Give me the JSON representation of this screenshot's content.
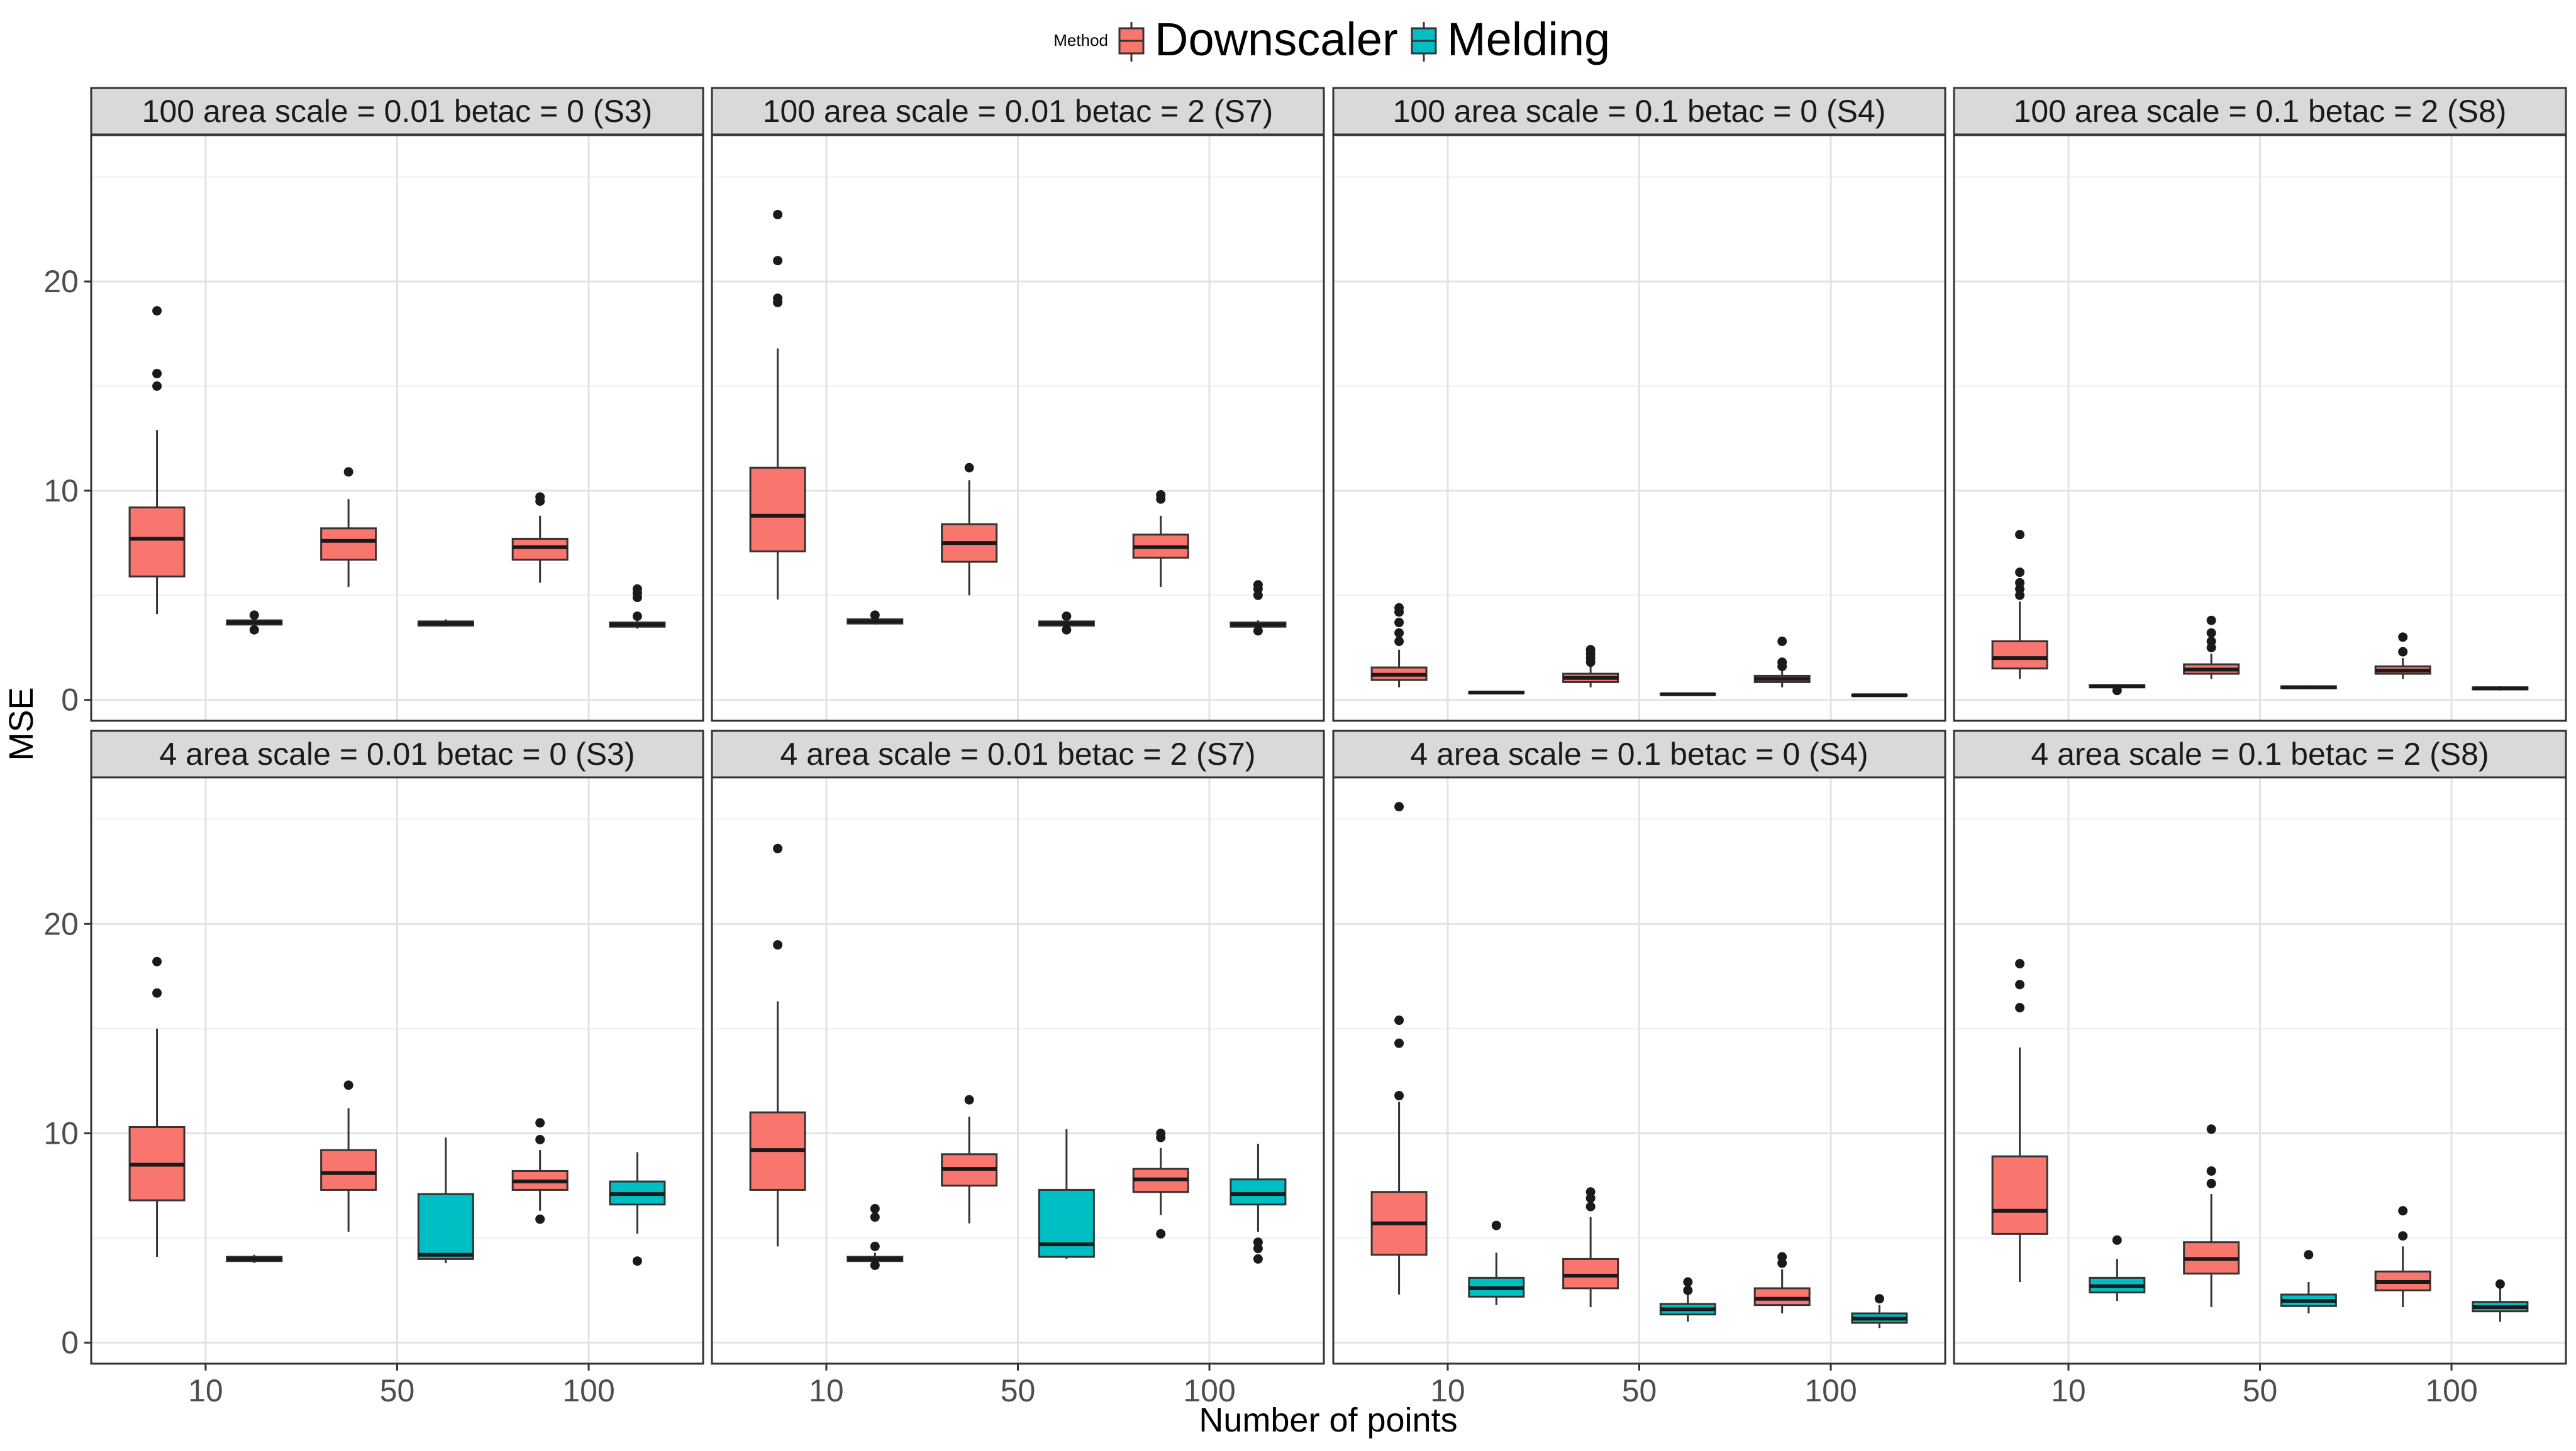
{
  "legend": {
    "title": "Method",
    "items": [
      {
        "label": "Downscaler",
        "color": "#F8766D"
      },
      {
        "label": "Melding",
        "color": "#00BFC4"
      }
    ]
  },
  "chart_data": {
    "type": "boxplot",
    "xlabel": "Number of points",
    "ylabel": "MSE",
    "categories": [
      "10",
      "50",
      "100"
    ],
    "ylim": [
      -1,
      27
    ],
    "yticks": [
      0,
      10,
      20
    ],
    "grid": true,
    "legend_position": "top",
    "series": [
      {
        "name": "Downscaler",
        "color": "#F8766D"
      },
      {
        "name": "Melding",
        "color": "#00BFC4"
      }
    ],
    "panels": [
      {
        "title": "100 area scale = 0.01 betac = 0 (S3)",
        "boxes": [
          {
            "category": "10",
            "series": "Downscaler",
            "lower_whisker": 4.1,
            "q1": 5.9,
            "median": 7.7,
            "q3": 9.2,
            "upper_whisker": 12.9,
            "outliers": [
              15.0,
              15.6,
              18.6
            ]
          },
          {
            "category": "10",
            "series": "Melding",
            "lower_whisker": 3.4,
            "q1": 3.6,
            "median": 3.7,
            "q3": 3.8,
            "upper_whisker": 4.0,
            "outliers": [
              3.35,
              4.05
            ]
          },
          {
            "category": "50",
            "series": "Downscaler",
            "lower_whisker": 5.4,
            "q1": 6.7,
            "median": 7.6,
            "q3": 8.2,
            "upper_whisker": 9.6,
            "outliers": [
              10.9
            ]
          },
          {
            "category": "50",
            "series": "Melding",
            "lower_whisker": 3.5,
            "q1": 3.55,
            "median": 3.65,
            "q3": 3.75,
            "upper_whisker": 3.85,
            "outliers": []
          },
          {
            "category": "100",
            "series": "Downscaler",
            "lower_whisker": 5.6,
            "q1": 6.7,
            "median": 7.3,
            "q3": 7.7,
            "upper_whisker": 8.8,
            "outliers": [
              9.5,
              9.7
            ]
          },
          {
            "category": "100",
            "series": "Melding",
            "lower_whisker": 3.4,
            "q1": 3.5,
            "median": 3.6,
            "q3": 3.7,
            "upper_whisker": 3.8,
            "outliers": [
              4.0,
              4.9,
              5.1,
              5.3
            ]
          }
        ]
      },
      {
        "title": "100 area scale = 0.01 betac = 2 (S7)",
        "boxes": [
          {
            "category": "10",
            "series": "Downscaler",
            "lower_whisker": 4.8,
            "q1": 7.1,
            "median": 8.8,
            "q3": 11.1,
            "upper_whisker": 16.8,
            "outliers": [
              19.0,
              19.2,
              21.0,
              23.2
            ]
          },
          {
            "category": "10",
            "series": "Melding",
            "lower_whisker": 3.6,
            "q1": 3.65,
            "median": 3.75,
            "q3": 3.85,
            "upper_whisker": 3.95,
            "outliers": [
              4.05
            ]
          },
          {
            "category": "50",
            "series": "Downscaler",
            "lower_whisker": 5.0,
            "q1": 6.6,
            "median": 7.5,
            "q3": 8.4,
            "upper_whisker": 10.5,
            "outliers": [
              11.1
            ]
          },
          {
            "category": "50",
            "series": "Melding",
            "lower_whisker": 3.5,
            "q1": 3.55,
            "median": 3.65,
            "q3": 3.75,
            "upper_whisker": 3.85,
            "outliers": [
              3.35,
              4.0
            ]
          },
          {
            "category": "100",
            "series": "Downscaler",
            "lower_whisker": 5.4,
            "q1": 6.8,
            "median": 7.3,
            "q3": 7.9,
            "upper_whisker": 8.8,
            "outliers": [
              9.6,
              9.8
            ]
          },
          {
            "category": "100",
            "series": "Melding",
            "lower_whisker": 3.4,
            "q1": 3.5,
            "median": 3.6,
            "q3": 3.7,
            "upper_whisker": 3.8,
            "outliers": [
              3.3,
              5.0,
              5.3,
              5.5
            ]
          }
        ]
      },
      {
        "title": "100 area scale = 0.1 betac = 0 (S4)",
        "boxes": [
          {
            "category": "10",
            "series": "Downscaler",
            "lower_whisker": 0.6,
            "q1": 0.95,
            "median": 1.2,
            "q3": 1.55,
            "upper_whisker": 2.4,
            "outliers": [
              2.8,
              3.2,
              3.7,
              4.2,
              4.4
            ]
          },
          {
            "category": "10",
            "series": "Melding",
            "lower_whisker": 0.3,
            "q1": 0.32,
            "median": 0.35,
            "q3": 0.38,
            "upper_whisker": 0.4,
            "outliers": []
          },
          {
            "category": "50",
            "series": "Downscaler",
            "lower_whisker": 0.6,
            "q1": 0.85,
            "median": 1.05,
            "q3": 1.25,
            "upper_whisker": 1.6,
            "outliers": [
              1.8,
              2.0,
              2.2,
              2.4
            ]
          },
          {
            "category": "50",
            "series": "Melding",
            "lower_whisker": 0.22,
            "q1": 0.25,
            "median": 0.27,
            "q3": 0.29,
            "upper_whisker": 0.31,
            "outliers": []
          },
          {
            "category": "100",
            "series": "Downscaler",
            "lower_whisker": 0.6,
            "q1": 0.85,
            "median": 1.0,
            "q3": 1.15,
            "upper_whisker": 1.4,
            "outliers": [
              1.6,
              1.8,
              2.8
            ]
          },
          {
            "category": "100",
            "series": "Melding",
            "lower_whisker": 0.18,
            "q1": 0.2,
            "median": 0.22,
            "q3": 0.24,
            "upper_whisker": 0.26,
            "outliers": []
          }
        ]
      },
      {
        "title": "100 area scale = 0.1 betac = 2 (S8)",
        "boxes": [
          {
            "category": "10",
            "series": "Downscaler",
            "lower_whisker": 1.0,
            "q1": 1.5,
            "median": 2.0,
            "q3": 2.8,
            "upper_whisker": 4.7,
            "outliers": [
              5.0,
              5.3,
              5.6,
              6.1,
              7.9
            ]
          },
          {
            "category": "10",
            "series": "Melding",
            "lower_whisker": 0.5,
            "q1": 0.6,
            "median": 0.65,
            "q3": 0.7,
            "upper_whisker": 0.75,
            "outliers": [
              0.45
            ]
          },
          {
            "category": "50",
            "series": "Downscaler",
            "lower_whisker": 1.0,
            "q1": 1.25,
            "median": 1.45,
            "q3": 1.7,
            "upper_whisker": 2.2,
            "outliers": [
              2.5,
              2.8,
              3.2,
              3.8
            ]
          },
          {
            "category": "50",
            "series": "Melding",
            "lower_whisker": 0.5,
            "q1": 0.55,
            "median": 0.6,
            "q3": 0.65,
            "upper_whisker": 0.7,
            "outliers": []
          },
          {
            "category": "100",
            "series": "Downscaler",
            "lower_whisker": 1.0,
            "q1": 1.25,
            "median": 1.4,
            "q3": 1.6,
            "upper_whisker": 2.0,
            "outliers": [
              2.3,
              3.0
            ]
          },
          {
            "category": "100",
            "series": "Melding",
            "lower_whisker": 0.45,
            "q1": 0.5,
            "median": 0.55,
            "q3": 0.6,
            "upper_whisker": 0.65,
            "outliers": []
          }
        ]
      },
      {
        "title": "4 area scale = 0.01 betac = 0 (S3)",
        "boxes": [
          {
            "category": "10",
            "series": "Downscaler",
            "lower_whisker": 4.1,
            "q1": 6.8,
            "median": 8.5,
            "q3": 10.3,
            "upper_whisker": 15.0,
            "outliers": [
              16.7,
              18.2
            ]
          },
          {
            "category": "10",
            "series": "Melding",
            "lower_whisker": 3.8,
            "q1": 3.9,
            "median": 4.0,
            "q3": 4.1,
            "upper_whisker": 4.2,
            "outliers": []
          },
          {
            "category": "50",
            "series": "Downscaler",
            "lower_whisker": 5.3,
            "q1": 7.3,
            "median": 8.1,
            "q3": 9.2,
            "upper_whisker": 11.2,
            "outliers": [
              12.3
            ]
          },
          {
            "category": "50",
            "series": "Melding",
            "lower_whisker": 3.8,
            "q1": 4.0,
            "median": 4.2,
            "q3": 7.1,
            "upper_whisker": 9.8,
            "outliers": []
          },
          {
            "category": "100",
            "series": "Downscaler",
            "lower_whisker": 6.3,
            "q1": 7.3,
            "median": 7.7,
            "q3": 8.2,
            "upper_whisker": 9.2,
            "outliers": [
              5.9,
              9.7,
              10.5
            ]
          },
          {
            "category": "100",
            "series": "Melding",
            "lower_whisker": 5.2,
            "q1": 6.6,
            "median": 7.1,
            "q3": 7.7,
            "upper_whisker": 9.1,
            "outliers": [
              3.9
            ]
          }
        ]
      },
      {
        "title": "4 area scale = 0.01 betac = 2 (S7)",
        "boxes": [
          {
            "category": "10",
            "series": "Downscaler",
            "lower_whisker": 4.6,
            "q1": 7.3,
            "median": 9.2,
            "q3": 11.0,
            "upper_whisker": 16.3,
            "outliers": [
              19.0,
              23.6
            ]
          },
          {
            "category": "10",
            "series": "Melding",
            "lower_whisker": 3.8,
            "q1": 3.9,
            "median": 4.0,
            "q3": 4.1,
            "upper_whisker": 4.3,
            "outliers": [
              3.7,
              4.6,
              6.0,
              6.4
            ]
          },
          {
            "category": "50",
            "series": "Downscaler",
            "lower_whisker": 5.7,
            "q1": 7.5,
            "median": 8.3,
            "q3": 9.0,
            "upper_whisker": 10.8,
            "outliers": [
              11.6
            ]
          },
          {
            "category": "50",
            "series": "Melding",
            "lower_whisker": 4.0,
            "q1": 4.1,
            "median": 4.7,
            "q3": 7.3,
            "upper_whisker": 10.2,
            "outliers": []
          },
          {
            "category": "100",
            "series": "Downscaler",
            "lower_whisker": 6.1,
            "q1": 7.2,
            "median": 7.8,
            "q3": 8.3,
            "upper_whisker": 9.3,
            "outliers": [
              5.2,
              9.8,
              10.0
            ]
          },
          {
            "category": "100",
            "series": "Melding",
            "lower_whisker": 5.3,
            "q1": 6.6,
            "median": 7.1,
            "q3": 7.8,
            "upper_whisker": 9.5,
            "outliers": [
              4.0,
              4.5,
              4.8
            ]
          }
        ]
      },
      {
        "title": "4 area scale = 0.1 betac = 0 (S4)",
        "boxes": [
          {
            "category": "10",
            "series": "Downscaler",
            "lower_whisker": 2.3,
            "q1": 4.2,
            "median": 5.7,
            "q3": 7.2,
            "upper_whisker": 11.5,
            "outliers": [
              11.8,
              14.3,
              15.4,
              25.6
            ]
          },
          {
            "category": "10",
            "series": "Melding",
            "lower_whisker": 1.8,
            "q1": 2.2,
            "median": 2.6,
            "q3": 3.1,
            "upper_whisker": 4.3,
            "outliers": [
              5.6
            ]
          },
          {
            "category": "50",
            "series": "Downscaler",
            "lower_whisker": 1.7,
            "q1": 2.6,
            "median": 3.2,
            "q3": 4.0,
            "upper_whisker": 6.0,
            "outliers": [
              6.5,
              6.9,
              7.2
            ]
          },
          {
            "category": "50",
            "series": "Melding",
            "lower_whisker": 1.0,
            "q1": 1.35,
            "median": 1.6,
            "q3": 1.85,
            "upper_whisker": 2.3,
            "outliers": [
              2.5,
              2.9
            ]
          },
          {
            "category": "100",
            "series": "Downscaler",
            "lower_whisker": 1.4,
            "q1": 1.8,
            "median": 2.1,
            "q3": 2.6,
            "upper_whisker": 3.5,
            "outliers": [
              3.8,
              4.1
            ]
          },
          {
            "category": "100",
            "series": "Melding",
            "lower_whisker": 0.7,
            "q1": 0.95,
            "median": 1.15,
            "q3": 1.4,
            "upper_whisker": 1.8,
            "outliers": [
              2.1
            ]
          }
        ]
      },
      {
        "title": "4 area scale = 0.1 betac = 2 (S8)",
        "boxes": [
          {
            "category": "10",
            "series": "Downscaler",
            "lower_whisker": 2.9,
            "q1": 5.2,
            "median": 6.3,
            "q3": 8.9,
            "upper_whisker": 14.1,
            "outliers": [
              16.0,
              17.1,
              18.1
            ]
          },
          {
            "category": "10",
            "series": "Melding",
            "lower_whisker": 2.0,
            "q1": 2.4,
            "median": 2.7,
            "q3": 3.1,
            "upper_whisker": 4.0,
            "outliers": [
              4.9
            ]
          },
          {
            "category": "50",
            "series": "Downscaler",
            "lower_whisker": 1.7,
            "q1": 3.3,
            "median": 4.0,
            "q3": 4.8,
            "upper_whisker": 7.1,
            "outliers": [
              7.6,
              8.2,
              10.2
            ]
          },
          {
            "category": "50",
            "series": "Melding",
            "lower_whisker": 1.4,
            "q1": 1.75,
            "median": 2.0,
            "q3": 2.3,
            "upper_whisker": 2.9,
            "outliers": [
              4.2
            ]
          },
          {
            "category": "100",
            "series": "Downscaler",
            "lower_whisker": 1.7,
            "q1": 2.5,
            "median": 2.9,
            "q3": 3.4,
            "upper_whisker": 4.6,
            "outliers": [
              5.1,
              6.3
            ]
          },
          {
            "category": "100",
            "series": "Melding",
            "lower_whisker": 1.0,
            "q1": 1.5,
            "median": 1.7,
            "q3": 1.95,
            "upper_whisker": 2.6,
            "outliers": [
              2.8
            ]
          }
        ]
      }
    ]
  }
}
